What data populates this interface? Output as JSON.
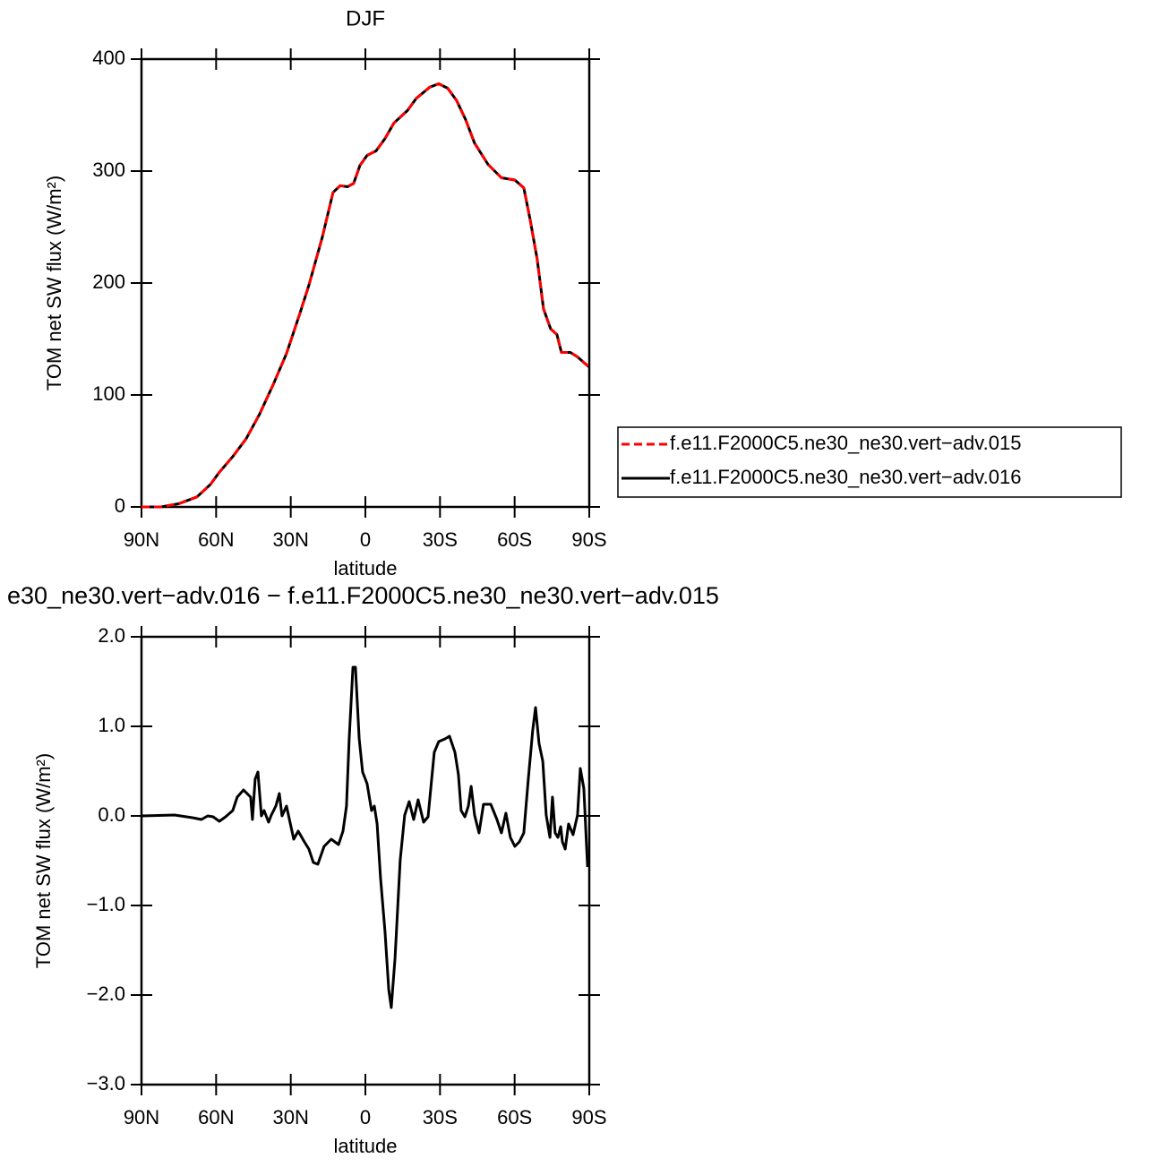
{
  "chart_data": [
    {
      "type": "line",
      "title": "DJF",
      "xlabel": "latitude",
      "ylabel": "TOM net SW flux (W/m²)",
      "xlim": [
        90,
        -90
      ],
      "ylim": [
        0,
        400
      ],
      "xticks": [
        {
          "value": 90,
          "label": "90N"
        },
        {
          "value": 60,
          "label": "60N"
        },
        {
          "value": 30,
          "label": "30N"
        },
        0,
        {
          "value": -30,
          "label": "30S"
        },
        {
          "value": -60,
          "label": "60S"
        },
        {
          "value": -90,
          "label": "90S"
        }
      ],
      "yticks": [
        0,
        100,
        200,
        300,
        400
      ],
      "x": [
        90,
        82.1,
        74.9,
        67.7,
        62.3,
        58.7,
        53.3,
        47.9,
        42.5,
        37.1,
        31.7,
        26.3,
        22.7,
        17.3,
        13.0,
        10.1,
        7.2,
        4.7,
        2.2,
        -0.7,
        -4.3,
        -7.9,
        -11.5,
        -16.9,
        -20.5,
        -25.9,
        -29.5,
        -33.1,
        -36.7,
        -40.3,
        -43.9,
        -49.3,
        -54.7,
        -60.1,
        -63.7,
        -66.2,
        -69.1,
        -71.6,
        -74.5,
        -77.0,
        -78.8,
        -82.4,
        -85.3,
        -87.8,
        -90
      ],
      "series": [
        {
          "name": "f.e11.F2000C5.ne30_ne30.vert−adv.016",
          "color": "#000000",
          "linestyle": "solid",
          "values": [
            0,
            0,
            3,
            9,
            20,
            31,
            45,
            61,
            83,
            109,
            137,
            173,
            198,
            241,
            281,
            287,
            286,
            289,
            305,
            314,
            318,
            329,
            343,
            354,
            365,
            375,
            378,
            374,
            363,
            346,
            325,
            306,
            294,
            292,
            285,
            257,
            221,
            177,
            159,
            154,
            138,
            138,
            134,
            129,
            125
          ]
        },
        {
          "name": "f.e11.F2000C5.ne30_ne30.vert−adv.015",
          "color": "#ff0000",
          "linestyle": "dashed",
          "values": [
            0,
            0,
            3,
            9,
            20,
            31,
            45,
            61,
            83,
            109,
            137,
            173,
            198,
            241,
            281,
            287,
            286,
            289,
            305,
            314,
            318,
            329,
            343,
            354,
            365,
            375,
            378,
            374,
            363,
            346,
            325,
            306,
            294,
            292,
            285,
            257,
            221,
            177,
            159,
            154,
            138,
            138,
            134,
            129,
            125
          ]
        }
      ]
    },
    {
      "type": "line",
      "title": "e30_ne30.vert−adv.016 − f.e11.F2000C5.ne30_ne30.vert−adv.015",
      "xlabel": "latitude",
      "ylabel": "TOM net SW flux (W/m²)",
      "xlim": [
        90,
        -90
      ],
      "ylim": [
        -3,
        2
      ],
      "xticks": [
        {
          "value": 90,
          "label": "90N"
        },
        {
          "value": 60,
          "label": "60N"
        },
        {
          "value": 30,
          "label": "30N"
        },
        0,
        {
          "value": -30,
          "label": "30S"
        },
        {
          "value": -60,
          "label": "60S"
        },
        {
          "value": -90,
          "label": "90S"
        }
      ],
      "yticks": [
        {
          "value": -3,
          "label": "−3.0"
        },
        {
          "value": -2,
          "label": "−2.0"
        },
        {
          "value": -1,
          "label": "−1.0"
        },
        {
          "value": 0,
          "label": "0.0"
        },
        {
          "value": 1,
          "label": "1.0"
        },
        {
          "value": 2,
          "label": "2.0"
        }
      ],
      "x": [
        90,
        76.7,
        69.5,
        65.9,
        63.4,
        61.2,
        58.7,
        56.2,
        53.3,
        51.5,
        49.0,
        46.1,
        45.4,
        44.3,
        43.2,
        41.8,
        40.7,
        38.9,
        37.8,
        36.0,
        34.6,
        33.5,
        31.7,
        28.8,
        27.0,
        24.5,
        22.7,
        20.9,
        19.1,
        16.6,
        13.7,
        10.8,
        9.0,
        7.6,
        6.5,
        5.0,
        4.0,
        2.5,
        1.1,
        -0.7,
        -2.5,
        -3.6,
        -4.7,
        -6.1,
        -7.9,
        -9.4,
        -10.4,
        -11.9,
        -14.0,
        -15.8,
        -17.6,
        -19.4,
        -21.2,
        -23.4,
        -25.2,
        -27.7,
        -29.5,
        -32.0,
        -33.8,
        -36.0,
        -37.4,
        -38.5,
        -40.0,
        -41.4,
        -42.5,
        -43.9,
        -45.7,
        -47.5,
        -50.4,
        -52.9,
        -54.7,
        -56.5,
        -58.3,
        -60.1,
        -61.9,
        -63.7,
        -65.5,
        -67.3,
        -68.4,
        -69.8,
        -71.3,
        -72.7,
        -74.2,
        -75.2,
        -76.3,
        -77.4,
        -78.5,
        -79.2,
        -80.3,
        -81.7,
        -83.5,
        -85.3,
        -86.4,
        -87.8,
        -89.3
      ],
      "series": [
        {
          "color": "#000000",
          "linestyle": "solid",
          "values": [
            0,
            0.01,
            -0.02,
            -0.04,
            0,
            -0.01,
            -0.06,
            -0.01,
            0.06,
            0.21,
            0.29,
            0.21,
            -0.04,
            0.41,
            0.49,
            0,
            0.06,
            -0.07,
            0.01,
            0.11,
            0.25,
            0,
            0.11,
            -0.26,
            -0.17,
            -0.29,
            -0.37,
            -0.52,
            -0.54,
            -0.34,
            -0.26,
            -0.32,
            -0.17,
            0.11,
            0.86,
            1.66,
            1.66,
            0.86,
            0.49,
            0.36,
            0.06,
            0.11,
            -0.09,
            -0.69,
            -1.29,
            -1.94,
            -2.14,
            -1.59,
            -0.49,
            0.01,
            0.16,
            -0.04,
            0.18,
            -0.07,
            -0.01,
            0.71,
            0.83,
            0.86,
            0.89,
            0.71,
            0.46,
            0.06,
            -0.01,
            0.11,
            0.33,
            0.01,
            -0.19,
            0.13,
            0.13,
            -0.04,
            -0.19,
            0.03,
            -0.24,
            -0.34,
            -0.29,
            -0.19,
            0.41,
            0.96,
            1.21,
            0.81,
            0.61,
            0.01,
            -0.24,
            0.21,
            -0.19,
            -0.24,
            -0.12,
            -0.29,
            -0.37,
            -0.09,
            -0.21,
            0.01,
            0.53,
            0.31,
            -0.57
          ]
        }
      ]
    }
  ]
}
